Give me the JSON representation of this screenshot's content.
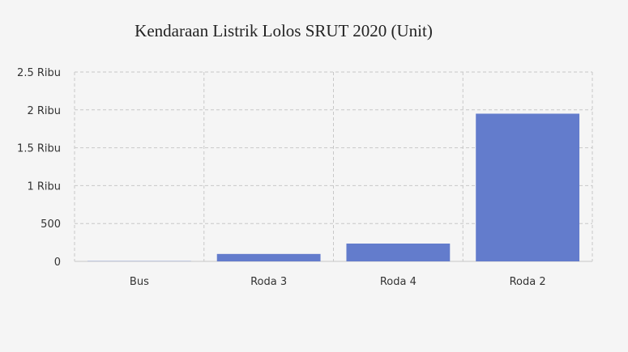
{
  "chart_data": {
    "type": "bar",
    "title": "Kendaraan Listrik Lolos SRUT 2020 (Unit)",
    "categories": [
      "Bus",
      "Roda 3",
      "Roda 4",
      "Roda 2"
    ],
    "values": [
      3,
      98,
      235,
      1950
    ],
    "ylim": [
      0,
      2500
    ],
    "y_ticks": [
      {
        "value": 0,
        "label": "0"
      },
      {
        "value": 500,
        "label": "500"
      },
      {
        "value": 1000,
        "label": "1 Ribu"
      },
      {
        "value": 1500,
        "label": "1.5 Ribu"
      },
      {
        "value": 2000,
        "label": "2 Ribu"
      },
      {
        "value": 2500,
        "label": "2.5 Ribu"
      }
    ],
    "grid": true,
    "bar_color": "#637ccc"
  }
}
